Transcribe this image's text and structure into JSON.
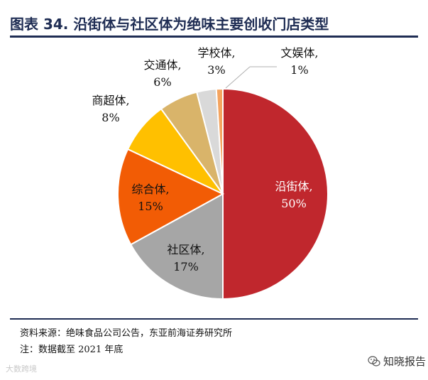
{
  "header": {
    "title": "图表 34. 沿街体与社区体为绝味主要创收门店类型"
  },
  "chart_data": {
    "type": "pie",
    "title": "图表 34. 沿街体与社区体为绝味主要创收门店类型",
    "start_angle_deg": 0,
    "direction": "clockwise",
    "slices": [
      {
        "label": "沿街体",
        "value": 50,
        "value_label": "50%",
        "color": "#c0272d"
      },
      {
        "label": "社区体",
        "value": 17,
        "value_label": "17%",
        "color": "#a6a6a6"
      },
      {
        "label": "综合体",
        "value": 15,
        "value_label": "15%",
        "color": "#f25c05"
      },
      {
        "label": "商超体",
        "value": 8,
        "value_label": "8%",
        "color": "#ffc000"
      },
      {
        "label": "交通体",
        "value": 6,
        "value_label": "6%",
        "color": "#d9b46a"
      },
      {
        "label": "学校体",
        "value": 3,
        "value_label": "3%",
        "color": "#d9d9d9"
      },
      {
        "label": "文娱体",
        "value": 1,
        "value_label": "1%",
        "color": "#f4a460"
      }
    ]
  },
  "footer": {
    "source": "资料来源：绝味食品公司公告，东亚前海证券研究所",
    "note": "注：数据截至 2021 年底"
  },
  "watermarks": {
    "left": "大数跨境",
    "right": "知晓报告",
    "right_icon": "wechat-icon"
  }
}
